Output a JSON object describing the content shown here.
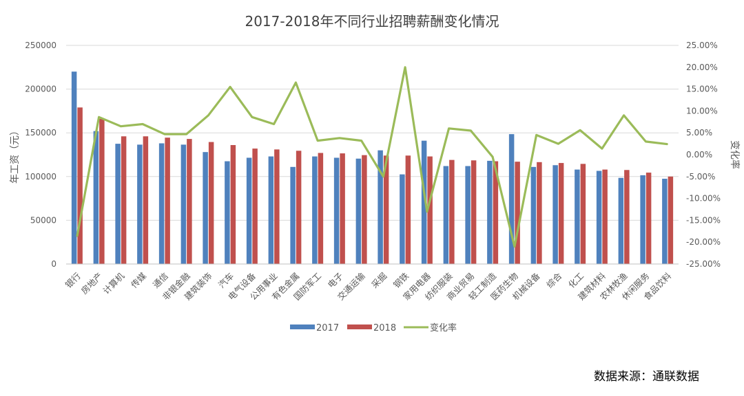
{
  "chart_data": {
    "type": "bar",
    "title": "2017-2018年不同行业招聘薪酬变化情况",
    "ylabel": "年工资（元）",
    "y2label": "变化率",
    "ylim": [
      0,
      250000
    ],
    "y2lim": [
      -0.25,
      0.25
    ],
    "yticks": [
      "0",
      "50000",
      "100000",
      "150000",
      "200000",
      "250000"
    ],
    "y2ticks": [
      "-25.00%",
      "-20.00%",
      "-15.00%",
      "-10.00%",
      "-5.00%",
      "0.00%",
      "5.00%",
      "10.00%",
      "15.00%",
      "20.00%",
      "25.00%"
    ],
    "grid": true,
    "legend_position": "bottom",
    "categories": [
      "银行",
      "房地产",
      "计算机",
      "传媒",
      "通信",
      "非银金融",
      "建筑装饰",
      "汽车",
      "电气设备",
      "公用事业",
      "有色金属",
      "国防军工",
      "电子",
      "交通运输",
      "采掘",
      "钢铁",
      "家用电器",
      "纺织服装",
      "商业贸易",
      "轻工制造",
      "医药生物",
      "机械设备",
      "综合",
      "化工",
      "建筑材料",
      "农林牧渔",
      "休闲服务",
      "食品饮料"
    ],
    "series": [
      {
        "name": "2017",
        "type": "bar",
        "color": "#4f81bd",
        "values": [
          220000,
          152000,
          137500,
          136500,
          138000,
          136500,
          128000,
          117500,
          121500,
          123000,
          111000,
          123000,
          121500,
          120500,
          130000,
          102500,
          141000,
          112000,
          112000,
          118000,
          148500,
          111000,
          113000,
          108000,
          106500,
          98500,
          101500,
          97500
        ]
      },
      {
        "name": "2018",
        "type": "bar",
        "color": "#c0504d",
        "values": [
          179000,
          166000,
          146000,
          146000,
          144500,
          143000,
          139500,
          136000,
          132000,
          131000,
          129500,
          127000,
          126500,
          124500,
          124000,
          124000,
          123000,
          119000,
          118500,
          117500,
          117000,
          116500,
          115500,
          114500,
          108000,
          107500,
          104500,
          100000
        ]
      },
      {
        "name": "变化率",
        "type": "line",
        "axis": "right",
        "color": "#9bbb59",
        "values": [
          -0.187,
          0.086,
          0.065,
          0.07,
          0.047,
          0.047,
          0.09,
          0.155,
          0.086,
          0.07,
          0.165,
          0.032,
          0.038,
          0.032,
          -0.05,
          0.2,
          -0.13,
          0.06,
          0.055,
          -0.005,
          -0.21,
          0.045,
          0.025,
          0.056,
          0.014,
          0.09,
          0.03,
          0.024
        ]
      }
    ]
  },
  "source": "数据来源：通联数据"
}
